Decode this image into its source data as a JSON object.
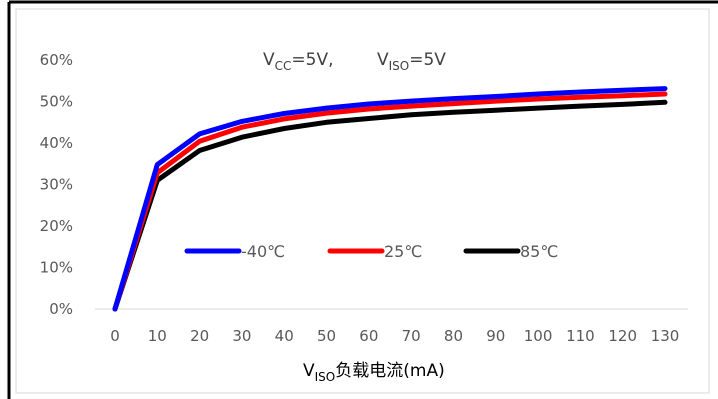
{
  "chart_data": {
    "type": "line",
    "annotation": {
      "vcc": {
        "base": "V",
        "sub": "CC",
        "rest": "=5V,"
      },
      "viso": {
        "base": "V",
        "sub": "ISO",
        "rest": "=5V"
      }
    },
    "xlabel": {
      "base": "V",
      "sub": "ISO",
      "rest": "负载电流(mA)"
    },
    "x": [
      0,
      10,
      20,
      30,
      40,
      50,
      60,
      70,
      80,
      90,
      100,
      110,
      120,
      130
    ],
    "x_tick_labels": [
      "0",
      "10",
      "20",
      "30",
      "40",
      "50",
      "60",
      "70",
      "80",
      "90",
      "100",
      "110",
      "120",
      "130"
    ],
    "ylim": [
      0,
      60
    ],
    "y_ticks": [
      0,
      10,
      20,
      30,
      40,
      50,
      60
    ],
    "y_tick_labels": [
      "0%",
      "10%",
      "20%",
      "30%",
      "40%",
      "50%",
      "60%"
    ],
    "grid": false,
    "legend_position": "center",
    "series": [
      {
        "name": "-40℃",
        "color": "#0000FF",
        "values": [
          0,
          34.8,
          42.2,
          45.2,
          47.1,
          48.4,
          49.4,
          50.1,
          50.7,
          51.2,
          51.8,
          52.3,
          52.7,
          53.1
        ]
      },
      {
        "name": "25℃",
        "color": "#FF0000",
        "values": [
          0,
          32.8,
          40.4,
          43.8,
          45.8,
          47.2,
          48.2,
          48.9,
          49.5,
          50.1,
          50.6,
          51.0,
          51.4,
          51.8
        ]
      },
      {
        "name": "85℃",
        "color": "#000000",
        "values": [
          0,
          31.0,
          38.2,
          41.4,
          43.5,
          45.0,
          45.9,
          46.8,
          47.4,
          47.9,
          48.4,
          48.9,
          49.3,
          49.8
        ]
      }
    ]
  }
}
